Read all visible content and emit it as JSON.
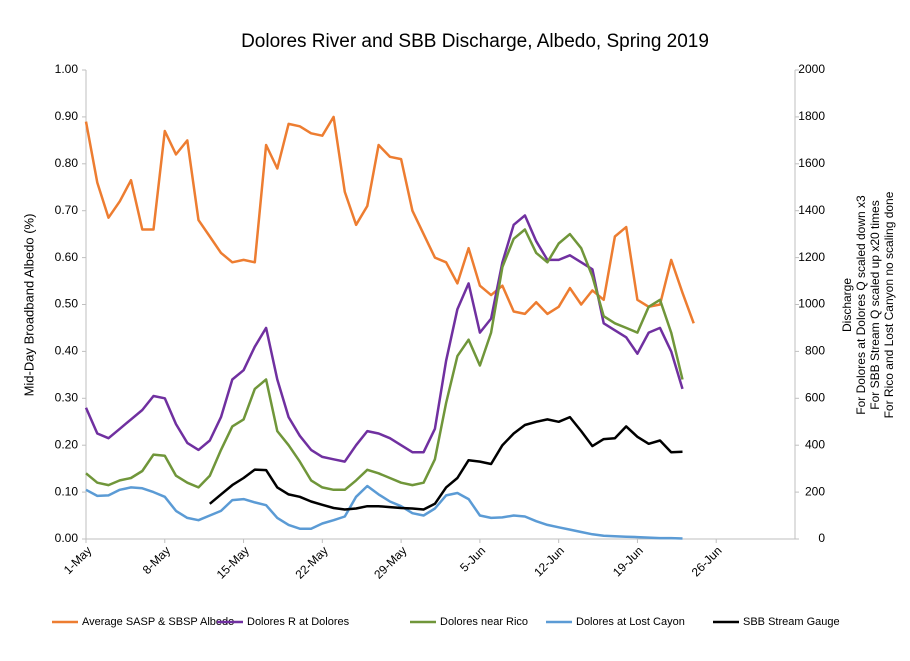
{
  "chart_data": {
    "type": "line",
    "title": "Dolores River and SBB Discharge, Albedo, Spring 2019",
    "ylabel": "Mid-Day Broadband Albedo (%)",
    "y2label": [
      "Discharge",
      "For Dolores at Dolores Q scaled down x3",
      "For SBB Stream Q scaled up x20 times",
      "For Rico and Lost Canyon no scaling done"
    ],
    "categories": [
      "1-May",
      null,
      null,
      null,
      null,
      null,
      null,
      "8-May",
      null,
      null,
      null,
      null,
      null,
      null,
      "15-May",
      null,
      null,
      null,
      null,
      null,
      null,
      "22-May",
      null,
      null,
      null,
      null,
      null,
      null,
      "29-May",
      null,
      null,
      null,
      null,
      null,
      null,
      "5-Jun",
      null,
      null,
      null,
      null,
      null,
      null,
      "12-Jun",
      null,
      null,
      null,
      null,
      null,
      null,
      "19-Jun",
      null,
      null,
      null,
      null,
      null,
      null,
      "26-Jun",
      null,
      null,
      null,
      null,
      null,
      null
    ],
    "ylim": [
      0,
      1
    ],
    "yticks": [
      {
        "value": 0,
        "label": "0.00"
      },
      {
        "value": 0.1,
        "label": "0.10"
      },
      {
        "value": 0.2,
        "label": "0.20"
      },
      {
        "value": 0.3,
        "label": "0.30"
      },
      {
        "value": 0.4,
        "label": "0.40"
      },
      {
        "value": 0.5,
        "label": "0.50"
      },
      {
        "value": 0.6,
        "label": "0.60"
      },
      {
        "value": 0.7,
        "label": "0.70"
      },
      {
        "value": 0.8,
        "label": "0.80"
      },
      {
        "value": 0.9,
        "label": "0.90"
      },
      {
        "value": 1,
        "label": "1.00"
      }
    ],
    "y2lim": [
      0,
      2000
    ],
    "y2ticks": [
      0,
      200,
      400,
      600,
      800,
      1000,
      1200,
      1400,
      1600,
      1800,
      2000
    ],
    "grid": false,
    "legend": "bottom",
    "series": [
      {
        "name": "Average SASP & SBSP Albedo",
        "color": "#ed7d31",
        "values": [
          0.89,
          0.76,
          0.685,
          0.72,
          0.765,
          0.66,
          0.66,
          0.87,
          0.82,
          0.85,
          0.68,
          0.645,
          0.61,
          0.59,
          0.595,
          0.59,
          0.84,
          0.79,
          0.885,
          0.88,
          0.865,
          0.86,
          0.9,
          0.74,
          0.67,
          0.71,
          0.84,
          0.815,
          0.81,
          0.7,
          0.65,
          0.6,
          0.59,
          0.545,
          0.62,
          0.54,
          0.52,
          0.54,
          0.485,
          0.48,
          0.505,
          0.48,
          0.495,
          0.535,
          0.5,
          0.53,
          0.51,
          0.645,
          0.665,
          0.51,
          0.495,
          0.5,
          0.595,
          0.525,
          0.46,
          null,
          null,
          null,
          null,
          null,
          null,
          null,
          null
        ]
      },
      {
        "name": "Dolores R at Dolores",
        "color": "#7030a0",
        "axis": "y2",
        "values": [
          560,
          450,
          430,
          470,
          510,
          550,
          610,
          600,
          490,
          410,
          380,
          420,
          520,
          680,
          720,
          820,
          900,
          680,
          520,
          440,
          380,
          350,
          340,
          330,
          400,
          460,
          450,
          430,
          400,
          370,
          370,
          470,
          760,
          980,
          1090,
          880,
          940,
          1180,
          1340,
          1380,
          1270,
          1190,
          1190,
          1210,
          1180,
          1150,
          920,
          890,
          860,
          790,
          880,
          900,
          800,
          640,
          null,
          null,
          null,
          null,
          null,
          null,
          null,
          null,
          null
        ]
      },
      {
        "name": "Dolores near Rico",
        "color": "#70963a",
        "axis": "y2",
        "values": [
          280,
          240,
          230,
          250,
          260,
          290,
          360,
          355,
          270,
          240,
          220,
          270,
          380,
          480,
          510,
          640,
          680,
          460,
          400,
          330,
          250,
          220,
          210,
          210,
          250,
          295,
          280,
          260,
          240,
          230,
          240,
          340,
          580,
          780,
          850,
          740,
          880,
          1160,
          1280,
          1320,
          1220,
          1180,
          1260,
          1300,
          1240,
          1120,
          950,
          920,
          900,
          880,
          990,
          1020,
          880,
          680,
          null,
          null,
          null,
          null,
          null,
          null,
          null,
          null,
          null
        ]
      },
      {
        "name": "Dolores at Lost Cayon",
        "color": "#5b9bd5",
        "axis": "y2",
        "values": [
          210,
          184,
          186,
          210,
          220,
          216,
          200,
          180,
          120,
          90,
          80,
          100,
          120,
          166,
          170,
          156,
          144,
          90,
          60,
          44,
          44,
          66,
          80,
          96,
          180,
          226,
          190,
          160,
          140,
          110,
          100,
          130,
          186,
          196,
          170,
          100,
          90,
          92,
          100,
          96,
          76,
          60,
          50,
          40,
          30,
          20,
          14,
          12,
          10,
          8,
          6,
          4,
          4,
          2,
          null,
          null,
          null,
          null,
          null,
          null,
          null,
          null,
          null
        ]
      },
      {
        "name": "SBB Stream Gauge",
        "color": "#000000",
        "axis": "y2",
        "values": [
          null,
          null,
          null,
          null,
          null,
          null,
          null,
          null,
          null,
          null,
          null,
          150,
          190,
          230,
          260,
          296,
          294,
          220,
          190,
          180,
          160,
          146,
          132,
          126,
          130,
          140,
          140,
          136,
          132,
          130,
          126,
          150,
          220,
          260,
          336,
          330,
          320,
          400,
          450,
          486,
          500,
          510,
          500,
          520,
          460,
          396,
          426,
          430,
          480,
          436,
          406,
          420,
          370,
          372,
          null,
          null,
          null,
          null,
          null,
          null,
          null,
          null,
          null
        ]
      }
    ]
  }
}
